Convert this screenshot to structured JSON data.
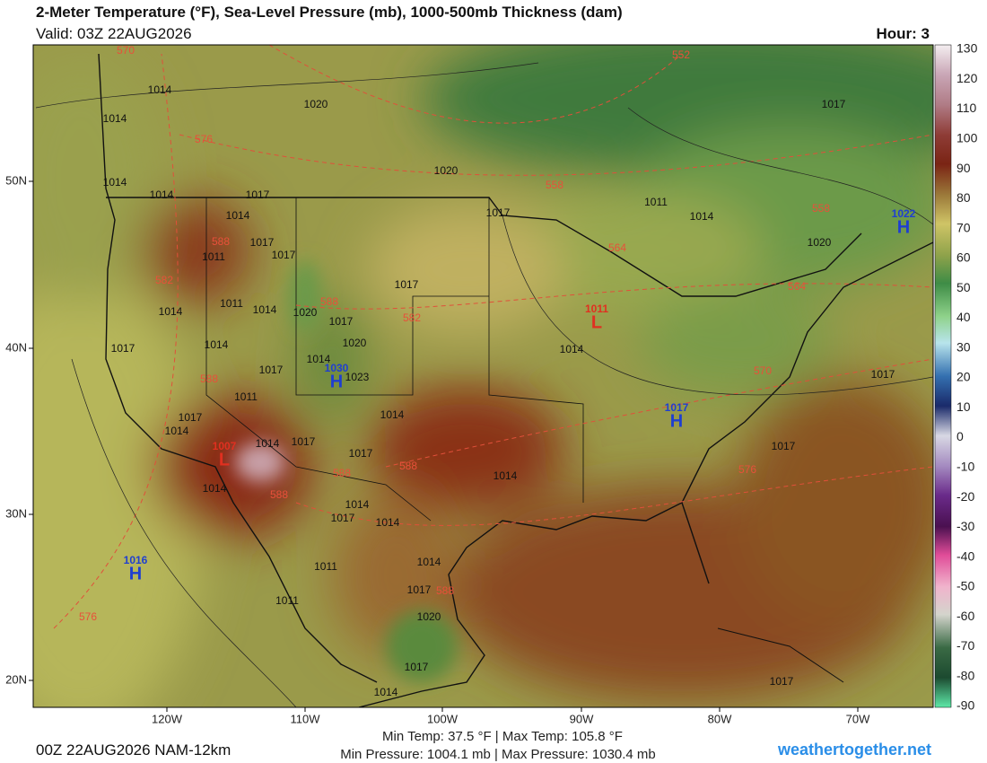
{
  "header": {
    "title": "2-Meter Temperature (°F), Sea-Level Pressure (mb), 1000-500mb Thickness (dam)",
    "valid": "Valid: 03Z 22AUG2026",
    "hour": "Hour: 3"
  },
  "colorbar": {
    "ticks": [
      130,
      120,
      110,
      100,
      90,
      80,
      70,
      60,
      50,
      40,
      30,
      20,
      10,
      0,
      -10,
      -20,
      -30,
      -40,
      -50,
      -60,
      -70,
      -80,
      -90
    ]
  },
  "axes": {
    "lat_labels": [
      "50N",
      "40N",
      "30N",
      "20N"
    ],
    "lon_labels": [
      "120W",
      "110W",
      "100W",
      "90W",
      "80W",
      "70W"
    ]
  },
  "pressure_centers": [
    {
      "letter": "H",
      "value": "1016"
    },
    {
      "letter": "L",
      "value": "1011"
    },
    {
      "letter": "H",
      "value": "1017"
    },
    {
      "letter": "H",
      "value": "1030"
    },
    {
      "letter": "L",
      "value": "1007"
    },
    {
      "letter": "H",
      "value": "1022"
    }
  ],
  "isobar_labels": [
    "1014",
    "1014",
    "1020",
    "1020",
    "1014",
    "1014",
    "1017",
    "1014",
    "1017",
    "1011",
    "1017",
    "1017",
    "1011",
    "1014",
    "1020",
    "1014",
    "1017",
    "1017",
    "1014",
    "1020",
    "1014",
    "1023",
    "1017",
    "1011",
    "1014",
    "1017",
    "1014",
    "1014",
    "1017",
    "1017",
    "1014",
    "1014",
    "1017",
    "1014",
    "1011",
    "1014",
    "1017",
    "1011",
    "1020",
    "1017",
    "1014",
    "1014",
    "1017",
    "1011",
    "1014",
    "1020",
    "1017",
    "1017",
    "1017",
    "1014",
    "1017"
  ],
  "thickness_labels": [
    "570",
    "552",
    "576",
    "558",
    "588",
    "564",
    "558",
    "582",
    "564",
    "588",
    "582",
    "588",
    "588",
    "588",
    "588",
    "576",
    "576",
    "588",
    "570"
  ],
  "footer": {
    "run": "00Z 22AUG2026 NAM-12km",
    "temp_stats": "Min Temp:  37.5 °F | Max Temp: 105.8 °F",
    "pressure_stats": "Min Pressure: 1004.1 mb | Max Pressure: 1030.4 mb",
    "credit": "weathertogether.net"
  }
}
